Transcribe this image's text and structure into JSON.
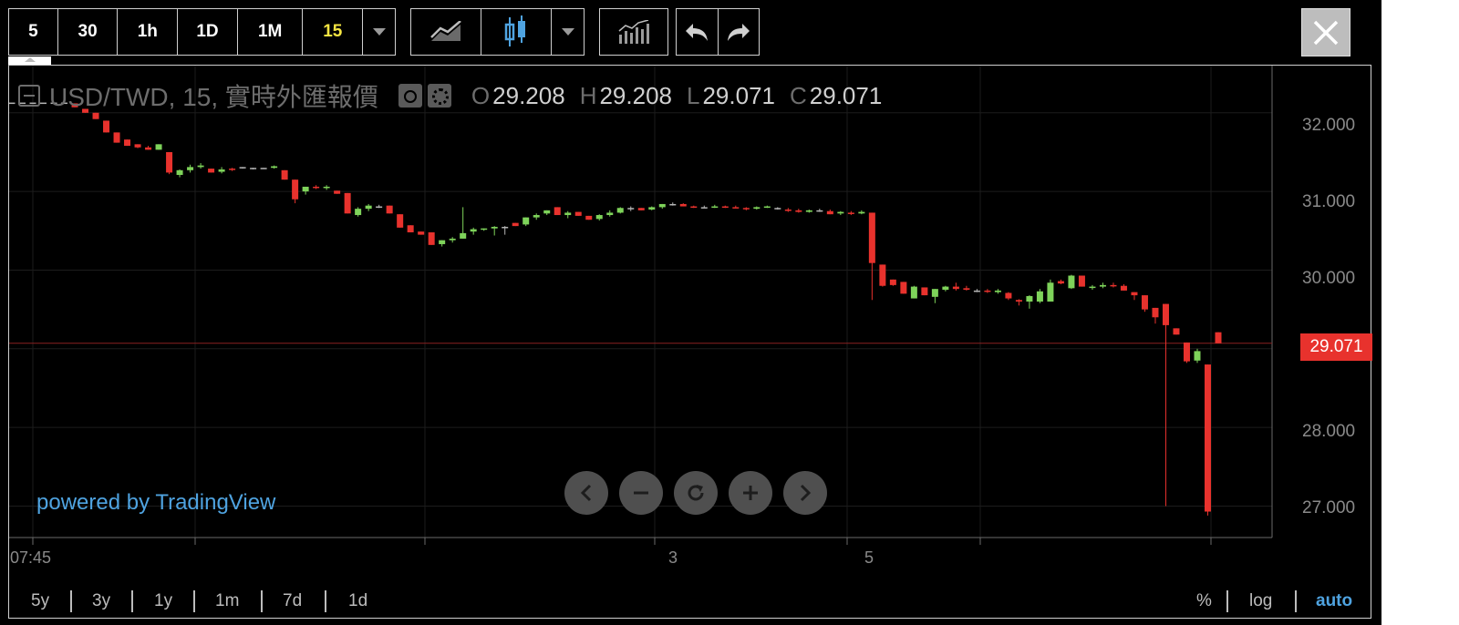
{
  "toolbar": {
    "intervals": [
      "5",
      "30",
      "1h",
      "1D",
      "1M",
      "15"
    ],
    "active_interval": "15"
  },
  "legend": {
    "symbol": "USD/TWD, 15, 實時外匯報價",
    "o_label": "O",
    "o_value": "29.208",
    "h_label": "H",
    "h_value": "29.208",
    "l_label": "L",
    "l_value": "29.071",
    "c_label": "C",
    "c_value": "29.071"
  },
  "price_axis": {
    "ticks": [
      "32.000",
      "31.000",
      "30.000",
      "28.000",
      "27.000"
    ],
    "last_price": "29.071"
  },
  "time_axis": {
    "labels": [
      "07:45",
      "3",
      "5"
    ]
  },
  "watermark": "powered by TradingView",
  "ranges": [
    "5y",
    "3y",
    "1y",
    "1m",
    "7d",
    "1d"
  ],
  "scale_options": [
    "%",
    "log",
    "auto"
  ],
  "active_scale": "auto",
  "colors": {
    "up": "#7ed35a",
    "down": "#e8322d",
    "flat": "#b5b5b5",
    "background": "#000000",
    "accent": "#4fa3e0"
  },
  "chart_data": {
    "type": "candlestick",
    "y_range": [
      26.6,
      32.6
    ],
    "gridlines": true,
    "series": [
      {
        "candles": [
          [
            32.13,
            32.13,
            32.13,
            32.13
          ],
          [
            32.13,
            32.13,
            32.13,
            32.13
          ],
          [
            32.13,
            32.13,
            32.13,
            32.13
          ],
          [
            32.13,
            32.13,
            32.13,
            32.13
          ],
          [
            32.13,
            32.13,
            32.13,
            32.13
          ],
          [
            32.13,
            32.13,
            32.13,
            32.13
          ],
          [
            32.12,
            32.12,
            32.07,
            32.07
          ],
          [
            32.05,
            32.05,
            32.0,
            32.0
          ],
          [
            32.0,
            32.0,
            31.92,
            31.92
          ],
          [
            31.9,
            31.9,
            31.75,
            31.75
          ],
          [
            31.75,
            31.75,
            31.62,
            31.62
          ],
          [
            31.66,
            31.66,
            31.58,
            31.58
          ],
          [
            31.6,
            31.6,
            31.55,
            31.56
          ],
          [
            31.56,
            31.58,
            31.53,
            31.53
          ],
          [
            31.53,
            31.6,
            31.53,
            31.6
          ],
          [
            31.5,
            31.5,
            31.22,
            31.24
          ],
          [
            31.21,
            31.28,
            31.18,
            31.27
          ],
          [
            31.27,
            31.34,
            31.24,
            31.31
          ],
          [
            31.31,
            31.36,
            31.29,
            31.33
          ],
          [
            31.29,
            31.29,
            31.24,
            31.24
          ],
          [
            31.25,
            31.31,
            31.23,
            31.28
          ],
          [
            31.29,
            31.3,
            31.26,
            31.28
          ],
          [
            31.31,
            31.31,
            31.29,
            31.31
          ],
          [
            31.3,
            31.3,
            31.28,
            31.3
          ],
          [
            31.3,
            31.3,
            31.29,
            31.3
          ],
          [
            31.3,
            31.33,
            31.29,
            31.32
          ],
          [
            31.27,
            31.27,
            31.15,
            31.15
          ],
          [
            31.15,
            31.15,
            30.85,
            30.9
          ],
          [
            31.0,
            31.06,
            30.96,
            31.06
          ],
          [
            31.06,
            31.08,
            31.03,
            31.05
          ],
          [
            31.05,
            31.08,
            31.02,
            31.06
          ],
          [
            31.01,
            31.01,
            30.97,
            30.97
          ],
          [
            30.98,
            30.98,
            30.72,
            30.72
          ],
          [
            30.7,
            30.8,
            30.68,
            30.78
          ],
          [
            30.78,
            30.84,
            30.75,
            30.82
          ],
          [
            30.81,
            30.83,
            30.79,
            30.81
          ],
          [
            30.82,
            30.82,
            30.72,
            30.72
          ],
          [
            30.71,
            30.71,
            30.54,
            30.54
          ],
          [
            30.57,
            30.57,
            30.48,
            30.48
          ],
          [
            30.49,
            30.49,
            30.45,
            30.45
          ],
          [
            30.48,
            30.48,
            30.32,
            30.32
          ],
          [
            30.33,
            30.38,
            30.3,
            30.38
          ],
          [
            30.38,
            30.42,
            30.35,
            30.4
          ],
          [
            30.4,
            30.8,
            30.4,
            30.47
          ],
          [
            30.49,
            30.54,
            30.45,
            30.52
          ],
          [
            30.52,
            30.53,
            30.5,
            30.53
          ],
          [
            30.53,
            30.56,
            30.44,
            30.55
          ],
          [
            30.55,
            30.56,
            30.45,
            30.55
          ],
          [
            30.6,
            30.6,
            30.56,
            30.56
          ],
          [
            30.58,
            30.67,
            30.56,
            30.67
          ],
          [
            30.67,
            30.72,
            30.64,
            30.7
          ],
          [
            30.72,
            30.76,
            30.7,
            30.76
          ],
          [
            30.8,
            30.8,
            30.7,
            30.7
          ],
          [
            30.7,
            30.75,
            30.66,
            30.73
          ],
          [
            30.74,
            30.74,
            30.69,
            30.69
          ],
          [
            30.69,
            30.69,
            30.64,
            30.64
          ],
          [
            30.65,
            30.71,
            30.63,
            30.7
          ],
          [
            30.7,
            30.76,
            30.68,
            30.73
          ],
          [
            30.73,
            30.8,
            30.72,
            30.79
          ],
          [
            30.79,
            30.81,
            30.75,
            30.79
          ],
          [
            30.79,
            30.79,
            30.76,
            30.76
          ],
          [
            30.77,
            30.81,
            30.76,
            30.8
          ],
          [
            30.8,
            30.84,
            30.78,
            30.84
          ],
          [
            30.84,
            30.86,
            30.82,
            30.84
          ],
          [
            30.84,
            30.85,
            30.81,
            30.81
          ],
          [
            30.81,
            30.82,
            30.79,
            30.8
          ],
          [
            30.8,
            30.82,
            30.79,
            30.8
          ],
          [
            30.8,
            30.83,
            30.79,
            30.81
          ],
          [
            30.81,
            30.82,
            30.79,
            30.8
          ],
          [
            30.8,
            30.82,
            30.79,
            30.79
          ],
          [
            30.79,
            30.8,
            30.76,
            30.78
          ],
          [
            30.78,
            30.81,
            30.77,
            30.8
          ],
          [
            30.8,
            30.82,
            30.79,
            30.81
          ],
          [
            30.79,
            30.8,
            30.77,
            30.79
          ],
          [
            30.77,
            30.79,
            30.74,
            30.76
          ],
          [
            30.76,
            30.78,
            30.73,
            30.74
          ],
          [
            30.74,
            30.77,
            30.73,
            30.76
          ],
          [
            30.76,
            30.78,
            30.74,
            30.76
          ],
          [
            30.75,
            30.77,
            30.71,
            30.71
          ],
          [
            30.72,
            30.75,
            30.7,
            30.74
          ],
          [
            30.73,
            30.75,
            30.7,
            30.72
          ],
          [
            30.72,
            30.76,
            30.71,
            30.74
          ],
          [
            30.73,
            30.73,
            29.62,
            30.09
          ],
          [
            30.07,
            30.07,
            29.79,
            29.8
          ],
          [
            29.88,
            29.88,
            29.8,
            29.81
          ],
          [
            29.85,
            29.85,
            29.7,
            29.7
          ],
          [
            29.64,
            29.8,
            29.64,
            29.79
          ],
          [
            29.78,
            29.78,
            29.68,
            29.68
          ],
          [
            29.66,
            29.76,
            29.58,
            29.76
          ],
          [
            29.75,
            29.8,
            29.73,
            29.79
          ],
          [
            29.79,
            29.84,
            29.74,
            29.76
          ],
          [
            29.77,
            29.8,
            29.74,
            29.75
          ],
          [
            29.74,
            29.76,
            29.72,
            29.74
          ],
          [
            29.74,
            29.76,
            29.71,
            29.73
          ],
          [
            29.72,
            29.76,
            29.7,
            29.74
          ],
          [
            29.71,
            29.72,
            29.62,
            29.64
          ],
          [
            29.62,
            29.63,
            29.55,
            29.6
          ],
          [
            29.6,
            29.68,
            29.51,
            29.67
          ],
          [
            29.6,
            29.76,
            29.58,
            29.73
          ],
          [
            29.6,
            29.88,
            29.6,
            29.84
          ],
          [
            29.86,
            29.88,
            29.82,
            29.83
          ],
          [
            29.77,
            29.94,
            29.76,
            29.93
          ],
          [
            29.93,
            29.93,
            29.79,
            29.79
          ],
          [
            29.78,
            29.81,
            29.75,
            29.79
          ],
          [
            29.79,
            29.84,
            29.77,
            29.81
          ],
          [
            29.81,
            29.84,
            29.78,
            29.8
          ],
          [
            29.8,
            29.82,
            29.74,
            29.74
          ],
          [
            29.72,
            29.72,
            29.62,
            29.68
          ],
          [
            29.68,
            29.68,
            29.47,
            29.5
          ],
          [
            29.52,
            29.52,
            29.32,
            29.4
          ],
          [
            29.57,
            29.57,
            27.0,
            29.3
          ],
          [
            29.26,
            29.26,
            29.18,
            29.18
          ],
          [
            29.08,
            29.08,
            28.82,
            28.84
          ],
          [
            28.85,
            29.0,
            28.82,
            28.97
          ],
          [
            28.8,
            28.8,
            26.88,
            26.93
          ],
          [
            29.21,
            29.21,
            29.07,
            29.07
          ]
        ]
      }
    ]
  }
}
